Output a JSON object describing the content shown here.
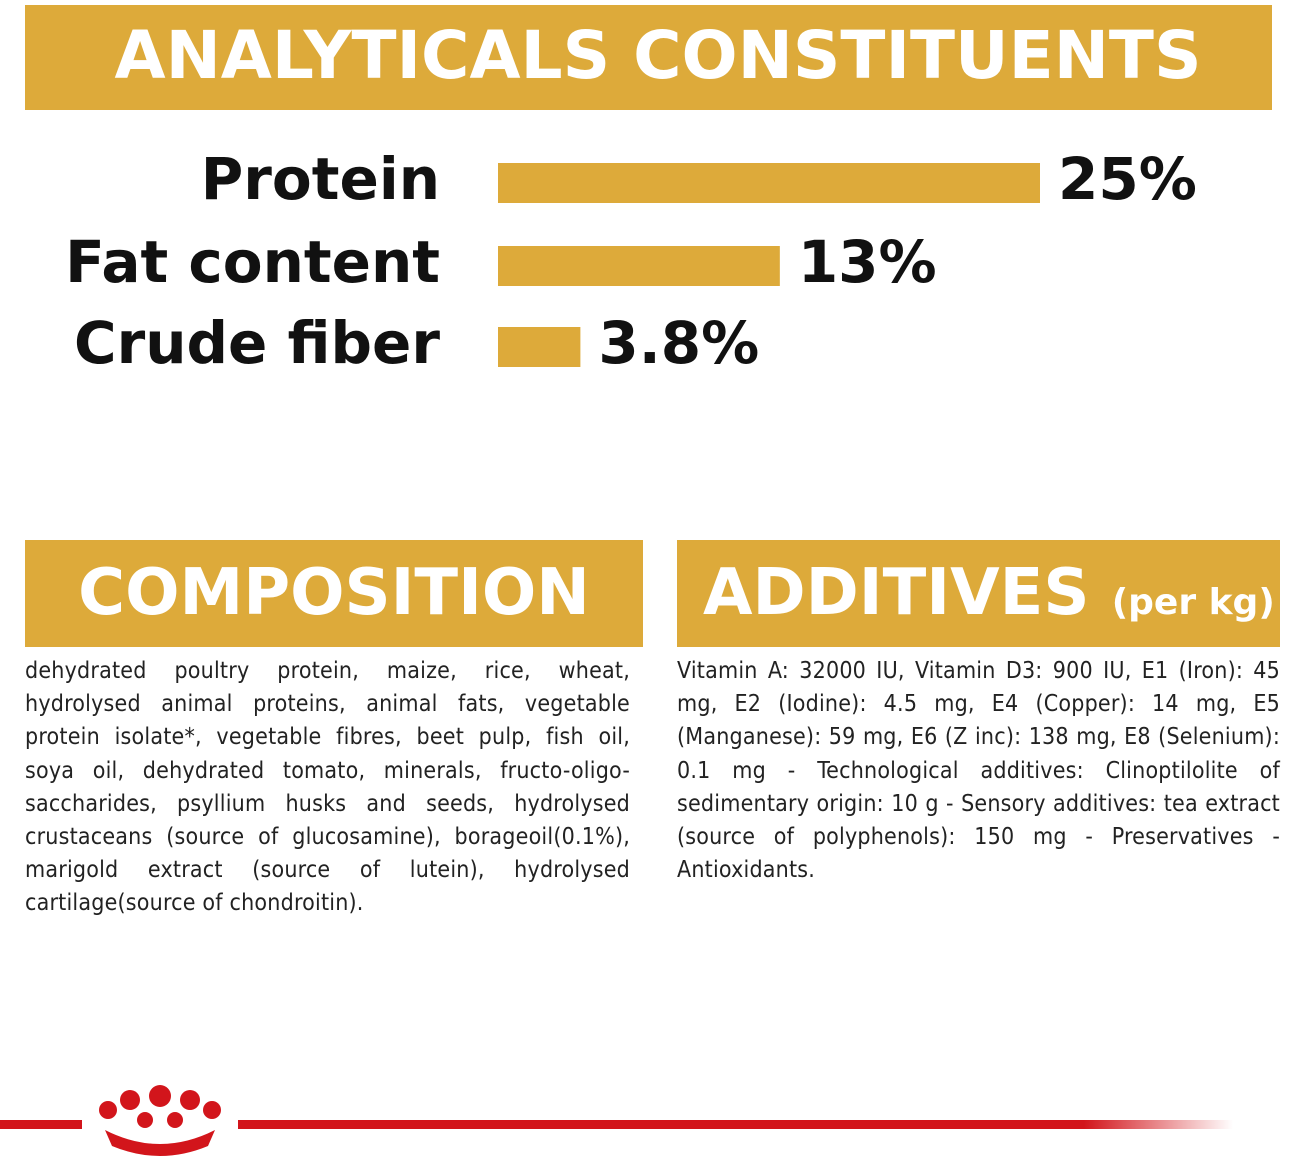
{
  "chart_data": {
    "type": "bar",
    "orientation": "horizontal",
    "title": "ANALYTICALS CONSTITUENTS",
    "categories": [
      "Protein",
      "Fat content",
      "Crude fiber"
    ],
    "values": [
      25,
      13,
      3.8
    ],
    "value_labels": [
      "25%",
      "13%",
      "3.8%"
    ],
    "color": "#DDAA3A"
  },
  "composition": {
    "title": "COMPOSITION",
    "text": "dehydrated poultry protein, maize, rice, wheat, hydrolysed animal proteins, animal fats, vegetable protein isolate*, vegetable fibres, beet pulp, fish oil, soya oil, dehydrated tomato, minerals, fructo-oligo-saccharides, psyllium husks and seeds, hydrolysed crustaceans (source of glucosamine), borageoil(0.1%), marigold extract (source of lutein), hydrolysed cartilage(source of chondroitin)."
  },
  "additives": {
    "title": "ADDITIVES",
    "unit": "(per kg)",
    "text": "Vitamin A: 32000 IU, Vitamin D3: 900 IU, E1 (Iron): 45 mg, E2 (Iodine): 4.5 mg, E4 (Copper): 14 mg, E5 (Manganese): 59 mg, E6 (Z inc): 138 mg, E8 (Selenium): 0.1 mg - Technological additives: Clinoptilolite of sedimentary origin: 10 g - Sensory additives: tea extract (source of polyphenols): 150 mg - Preservatives - Antioxidants."
  }
}
